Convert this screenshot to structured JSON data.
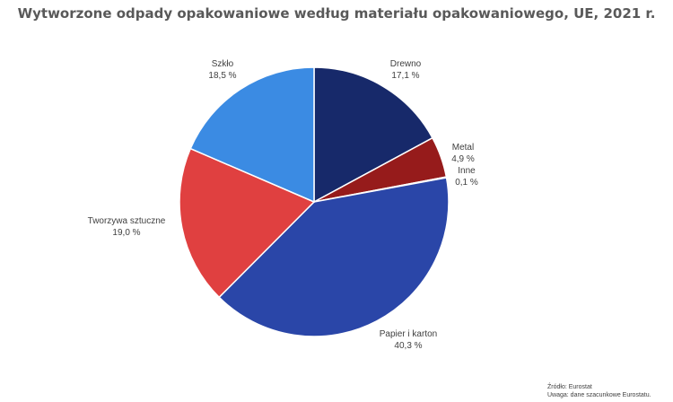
{
  "chart_data": {
    "type": "pie",
    "title": "Wytworzone odpady opakowaniowe według materiału opakowaniowego, UE, 2021 r.",
    "slices": [
      {
        "name": "Drewno",
        "value": 17.1,
        "label": "17,1 %",
        "color": "#17296A"
      },
      {
        "name": "Metal",
        "value": 4.9,
        "label": "4,9 %",
        "color": "#961B1B"
      },
      {
        "name": "Inne",
        "value": 0.1,
        "label": "0,1 %",
        "color": "#C8C8C8"
      },
      {
        "name": "Papier i karton",
        "value": 40.3,
        "label": "40,3 %",
        "color": "#2A46A8"
      },
      {
        "name": "Tworzywa sztuczne",
        "value": 19.0,
        "label": "19,0 %",
        "color": "#E04040"
      },
      {
        "name": "Szkło",
        "value": 18.5,
        "label": "18,5 %",
        "color": "#3B8BE3"
      }
    ],
    "legend": "none"
  },
  "source": {
    "line1": "Źródło: Eurostat",
    "line2": "Uwaga: dane szacunkowe Eurostatu."
  }
}
